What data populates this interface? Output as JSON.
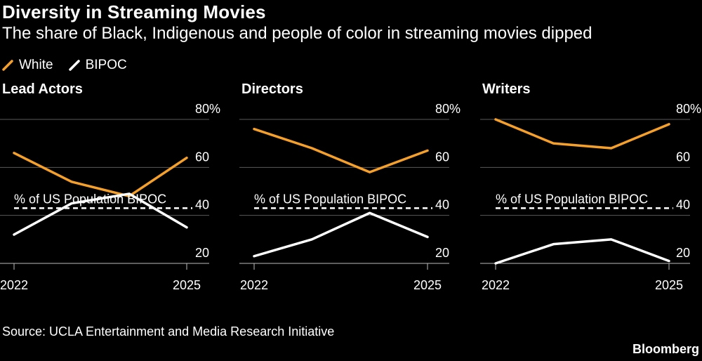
{
  "title": "Diversity in Streaming Movies",
  "subtitle": "The share of Black, Indigenous and people of color in streaming movies dipped",
  "source": "Source: UCLA Entertainment and Media Research Initiative",
  "brand": "Bloomberg",
  "colors": {
    "white_series": "#f5a02a",
    "bipoc_series": "#ffffff",
    "background": "#000000"
  },
  "chart_data": [
    {
      "type": "line",
      "title": "Lead Actors",
      "x": [
        2022,
        2023,
        2024,
        2025
      ],
      "x_tick_labels": [
        "2022",
        "2025"
      ],
      "y_ticks": [
        "20",
        "40",
        "60",
        "80%"
      ],
      "ylim": [
        15,
        80
      ],
      "reference": {
        "label": "% of US Population BIPOC",
        "value": 43
      },
      "series": [
        {
          "name": "White",
          "values": [
            66,
            54,
            48,
            64
          ]
        },
        {
          "name": "BIPOC",
          "values": [
            32,
            45,
            49,
            35
          ]
        }
      ]
    },
    {
      "type": "line",
      "title": "Directors",
      "x": [
        2022,
        2023,
        2024,
        2025
      ],
      "x_tick_labels": [
        "2022",
        "2025"
      ],
      "y_ticks": [
        "20",
        "40",
        "60",
        "80%"
      ],
      "ylim": [
        15,
        80
      ],
      "reference": {
        "label": "% of US Population BIPOC",
        "value": 43
      },
      "series": [
        {
          "name": "White",
          "values": [
            76,
            68,
            58,
            67
          ]
        },
        {
          "name": "BIPOC",
          "values": [
            23,
            30,
            41,
            31
          ]
        }
      ]
    },
    {
      "type": "line",
      "title": "Writers",
      "x": [
        2022,
        2023,
        2024,
        2025
      ],
      "x_tick_labels": [
        "2022",
        "2025"
      ],
      "y_ticks": [
        "20",
        "40",
        "60",
        "80%"
      ],
      "ylim": [
        15,
        80
      ],
      "reference": {
        "label": "% of US Population BIPOC",
        "value": 43
      },
      "series": [
        {
          "name": "White",
          "values": [
            80,
            70,
            68,
            78
          ]
        },
        {
          "name": "BIPOC",
          "values": [
            20,
            28,
            30,
            21
          ]
        }
      ]
    }
  ]
}
